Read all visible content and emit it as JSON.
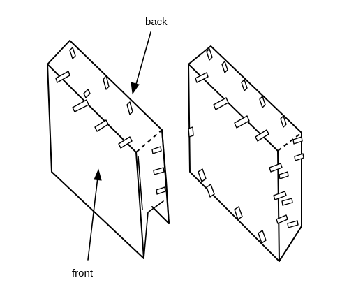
{
  "labels": {
    "back": "back",
    "front": "front"
  }
}
